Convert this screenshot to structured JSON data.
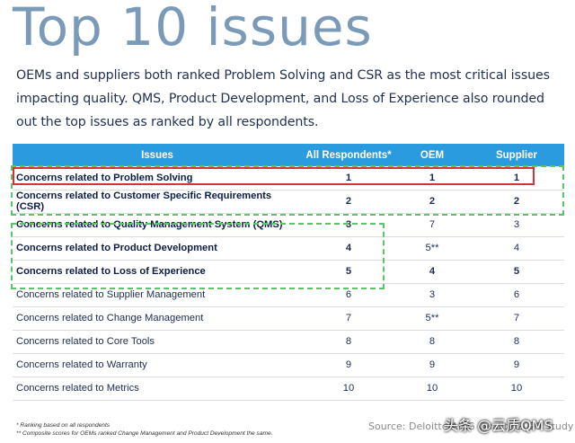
{
  "title": "Top 10 issues",
  "intro": "OEMs and suppliers both ranked Problem Solving and CSR as the most critical issues impacting quality. QMS, Product Development, and Loss of Experience also rounded out the top issues as ranked by all respondents.",
  "table": {
    "headers": [
      "Issues",
      "All Respondents*",
      "OEM",
      "Supplier"
    ],
    "rows": [
      {
        "issue": "Concerns related to Problem Solving",
        "all": "1",
        "oem": "1",
        "supplier": "1"
      },
      {
        "issue": "Concerns related to Customer Specific Requirements (CSR)",
        "all": "2",
        "oem": "2",
        "supplier": "2"
      },
      {
        "issue": "Concerns related to Quality Management System (QMS)",
        "all": "3",
        "oem": "7",
        "supplier": "3"
      },
      {
        "issue": "Concerns related to Product Development",
        "all": "4",
        "oem": "5**",
        "supplier": "4"
      },
      {
        "issue": "Concerns related to Loss of Experience",
        "all": "5",
        "oem": "4",
        "supplier": "5"
      },
      {
        "issue": "Concerns related to Supplier Management",
        "all": "6",
        "oem": "3",
        "supplier": "6"
      },
      {
        "issue": "Concerns related to Change Management",
        "all": "7",
        "oem": "5**",
        "supplier": "7"
      },
      {
        "issue": "Concerns related to Core Tools",
        "all": "8",
        "oem": "8",
        "supplier": "8"
      },
      {
        "issue": "Concerns related to Warranty",
        "all": "9",
        "oem": "9",
        "supplier": "9"
      },
      {
        "issue": "Concerns related to Metrics",
        "all": "10",
        "oem": "10",
        "supplier": "10"
      }
    ]
  },
  "footnotes": [
    "* Ranking based on all respondents",
    "** Composite scores for OEMs ranked Change Management and Product Development the same."
  ],
  "source": "Source: Deloitte/AIAG Quality 2020 Study",
  "watermark": "头条 @云质QMS"
}
